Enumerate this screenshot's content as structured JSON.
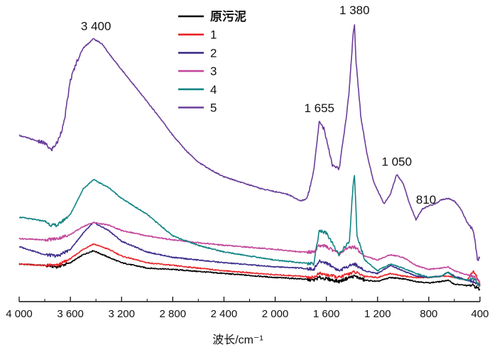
{
  "chart_data": {
    "type": "line",
    "xlabel": "波长/cm⁻¹",
    "ylabel": "",
    "xlim": [
      4000,
      400
    ],
    "ylim": [
      0,
      1
    ],
    "x_reversed": true,
    "y_ticks_visible": false,
    "grid": false,
    "legend_position": "top-center",
    "x_ticks": [
      4000,
      3600,
      3200,
      2800,
      2400,
      2000,
      1600,
      1200,
      800,
      400
    ],
    "x_tick_labels": [
      "4 000",
      "3 600",
      "3 200",
      "2 800",
      "2 400",
      "2 000",
      "1 600",
      "1 200",
      "800",
      "400"
    ],
    "annotations": [
      {
        "text": "3 400",
        "x": 3400,
        "y": 0.935
      },
      {
        "text": "1 655",
        "x": 1655,
        "y": 0.63
      },
      {
        "text": "1 380",
        "x": 1380,
        "y": 0.99
      },
      {
        "text": "1 050",
        "x": 1050,
        "y": 0.43
      },
      {
        "text": "810",
        "x": 810,
        "y": 0.31
      }
    ],
    "series": [
      {
        "name": "原污泥",
        "color": "#000000",
        "points": [
          [
            4000,
            0.095
          ],
          [
            3800,
            0.09
          ],
          [
            3700,
            0.085
          ],
          [
            3600,
            0.1
          ],
          [
            3500,
            0.13
          ],
          [
            3420,
            0.145
          ],
          [
            3300,
            0.12
          ],
          [
            3200,
            0.1
          ],
          [
            3000,
            0.08
          ],
          [
            2800,
            0.075
          ],
          [
            2400,
            0.06
          ],
          [
            2000,
            0.045
          ],
          [
            1800,
            0.04
          ],
          [
            1700,
            0.035
          ],
          [
            1655,
            0.045
          ],
          [
            1600,
            0.04
          ],
          [
            1500,
            0.03
          ],
          [
            1420,
            0.045
          ],
          [
            1380,
            0.05
          ],
          [
            1300,
            0.035
          ],
          [
            1200,
            0.03
          ],
          [
            1100,
            0.045
          ],
          [
            1000,
            0.04
          ],
          [
            900,
            0.03
          ],
          [
            800,
            0.025
          ],
          [
            700,
            0.03
          ],
          [
            650,
            0.035
          ],
          [
            600,
            0.02
          ],
          [
            500,
            0.015
          ],
          [
            450,
            0.015
          ],
          [
            400,
            0.0
          ]
        ]
      },
      {
        "name": "1",
        "color": "#e8262a",
        "points": [
          [
            4000,
            0.095
          ],
          [
            3800,
            0.09
          ],
          [
            3700,
            0.09
          ],
          [
            3600,
            0.115
          ],
          [
            3500,
            0.15
          ],
          [
            3420,
            0.17
          ],
          [
            3300,
            0.15
          ],
          [
            3200,
            0.125
          ],
          [
            3000,
            0.1
          ],
          [
            2800,
            0.09
          ],
          [
            2400,
            0.07
          ],
          [
            2000,
            0.055
          ],
          [
            1800,
            0.05
          ],
          [
            1700,
            0.045
          ],
          [
            1655,
            0.06
          ],
          [
            1600,
            0.055
          ],
          [
            1500,
            0.045
          ],
          [
            1420,
            0.06
          ],
          [
            1380,
            0.065
          ],
          [
            1300,
            0.05
          ],
          [
            1200,
            0.045
          ],
          [
            1100,
            0.06
          ],
          [
            1000,
            0.05
          ],
          [
            900,
            0.045
          ],
          [
            800,
            0.045
          ],
          [
            700,
            0.05
          ],
          [
            650,
            0.05
          ],
          [
            600,
            0.045
          ],
          [
            500,
            0.035
          ],
          [
            450,
            0.07
          ],
          [
            400,
            0.02
          ]
        ]
      },
      {
        "name": "2",
        "color": "#3d2e8c",
        "points": [
          [
            4000,
            0.16
          ],
          [
            3800,
            0.13
          ],
          [
            3700,
            0.125
          ],
          [
            3600,
            0.15
          ],
          [
            3500,
            0.21
          ],
          [
            3420,
            0.25
          ],
          [
            3300,
            0.22
          ],
          [
            3200,
            0.18
          ],
          [
            3000,
            0.14
          ],
          [
            2800,
            0.12
          ],
          [
            2400,
            0.1
          ],
          [
            2000,
            0.085
          ],
          [
            1800,
            0.08
          ],
          [
            1700,
            0.075
          ],
          [
            1655,
            0.105
          ],
          [
            1600,
            0.1
          ],
          [
            1500,
            0.07
          ],
          [
            1420,
            0.09
          ],
          [
            1380,
            0.095
          ],
          [
            1300,
            0.07
          ],
          [
            1200,
            0.06
          ],
          [
            1100,
            0.09
          ],
          [
            1000,
            0.07
          ],
          [
            900,
            0.05
          ],
          [
            800,
            0.045
          ],
          [
            700,
            0.05
          ],
          [
            650,
            0.065
          ],
          [
            600,
            0.05
          ],
          [
            500,
            0.035
          ],
          [
            450,
            0.03
          ],
          [
            400,
            0.015
          ]
        ]
      },
      {
        "name": "3",
        "color": "#c2479b",
        "points": [
          [
            4000,
            0.19
          ],
          [
            3800,
            0.185
          ],
          [
            3700,
            0.19
          ],
          [
            3600,
            0.205
          ],
          [
            3500,
            0.235
          ],
          [
            3420,
            0.25
          ],
          [
            3300,
            0.24
          ],
          [
            3200,
            0.22
          ],
          [
            3000,
            0.2
          ],
          [
            2800,
            0.185
          ],
          [
            2400,
            0.165
          ],
          [
            2000,
            0.15
          ],
          [
            1800,
            0.14
          ],
          [
            1700,
            0.14
          ],
          [
            1655,
            0.165
          ],
          [
            1600,
            0.16
          ],
          [
            1500,
            0.135
          ],
          [
            1420,
            0.155
          ],
          [
            1380,
            0.16
          ],
          [
            1300,
            0.125
          ],
          [
            1200,
            0.11
          ],
          [
            1100,
            0.13
          ],
          [
            1000,
            0.12
          ],
          [
            900,
            0.09
          ],
          [
            800,
            0.075
          ],
          [
            700,
            0.08
          ],
          [
            650,
            0.085
          ],
          [
            600,
            0.07
          ],
          [
            500,
            0.055
          ],
          [
            450,
            0.05
          ],
          [
            400,
            0.03
          ]
        ]
      },
      {
        "name": "4",
        "color": "#148484",
        "points": [
          [
            4000,
            0.27
          ],
          [
            3800,
            0.255
          ],
          [
            3750,
            0.24
          ],
          [
            3700,
            0.24
          ],
          [
            3600,
            0.28
          ],
          [
            3500,
            0.375
          ],
          [
            3420,
            0.41
          ],
          [
            3300,
            0.38
          ],
          [
            3200,
            0.34
          ],
          [
            3000,
            0.28
          ],
          [
            2900,
            0.24
          ],
          [
            2800,
            0.2
          ],
          [
            2600,
            0.165
          ],
          [
            2400,
            0.14
          ],
          [
            2200,
            0.125
          ],
          [
            2000,
            0.11
          ],
          [
            1800,
            0.1
          ],
          [
            1700,
            0.095
          ],
          [
            1655,
            0.22
          ],
          [
            1600,
            0.21
          ],
          [
            1500,
            0.13
          ],
          [
            1420,
            0.18
          ],
          [
            1390,
            0.4
          ],
          [
            1380,
            0.42
          ],
          [
            1360,
            0.2
          ],
          [
            1300,
            0.11
          ],
          [
            1200,
            0.07
          ],
          [
            1100,
            0.095
          ],
          [
            1000,
            0.08
          ],
          [
            900,
            0.06
          ],
          [
            800,
            0.045
          ],
          [
            700,
            0.05
          ],
          [
            650,
            0.065
          ],
          [
            600,
            0.045
          ],
          [
            500,
            0.035
          ],
          [
            450,
            0.04
          ],
          [
            400,
            0.01
          ]
        ]
      },
      {
        "name": "5",
        "color": "#6a3d98",
        "points": [
          [
            4000,
            0.575
          ],
          [
            3900,
            0.56
          ],
          [
            3800,
            0.545
          ],
          [
            3750,
            0.52
          ],
          [
            3700,
            0.55
          ],
          [
            3650,
            0.62
          ],
          [
            3600,
            0.78
          ],
          [
            3550,
            0.85
          ],
          [
            3500,
            0.9
          ],
          [
            3420,
            0.935
          ],
          [
            3350,
            0.915
          ],
          [
            3300,
            0.88
          ],
          [
            3200,
            0.82
          ],
          [
            3100,
            0.76
          ],
          [
            3000,
            0.7
          ],
          [
            2900,
            0.64
          ],
          [
            2800,
            0.575
          ],
          [
            2700,
            0.52
          ],
          [
            2600,
            0.475
          ],
          [
            2500,
            0.445
          ],
          [
            2400,
            0.42
          ],
          [
            2300,
            0.405
          ],
          [
            2200,
            0.39
          ],
          [
            2100,
            0.375
          ],
          [
            2000,
            0.365
          ],
          [
            1900,
            0.355
          ],
          [
            1800,
            0.33
          ],
          [
            1750,
            0.34
          ],
          [
            1700,
            0.44
          ],
          [
            1655,
            0.63
          ],
          [
            1620,
            0.6
          ],
          [
            1550,
            0.46
          ],
          [
            1500,
            0.45
          ],
          [
            1450,
            0.62
          ],
          [
            1420,
            0.75
          ],
          [
            1390,
            0.96
          ],
          [
            1380,
            0.99
          ],
          [
            1370,
            0.86
          ],
          [
            1330,
            0.64
          ],
          [
            1280,
            0.5
          ],
          [
            1230,
            0.4
          ],
          [
            1150,
            0.32
          ],
          [
            1100,
            0.355
          ],
          [
            1050,
            0.43
          ],
          [
            1000,
            0.395
          ],
          [
            950,
            0.32
          ],
          [
            900,
            0.26
          ],
          [
            850,
            0.3
          ],
          [
            810,
            0.31
          ],
          [
            750,
            0.32
          ],
          [
            700,
            0.335
          ],
          [
            650,
            0.34
          ],
          [
            600,
            0.33
          ],
          [
            550,
            0.3
          ],
          [
            500,
            0.25
          ],
          [
            450,
            0.22
          ],
          [
            420,
            0.11
          ],
          [
            400,
            0.12
          ]
        ]
      }
    ]
  }
}
